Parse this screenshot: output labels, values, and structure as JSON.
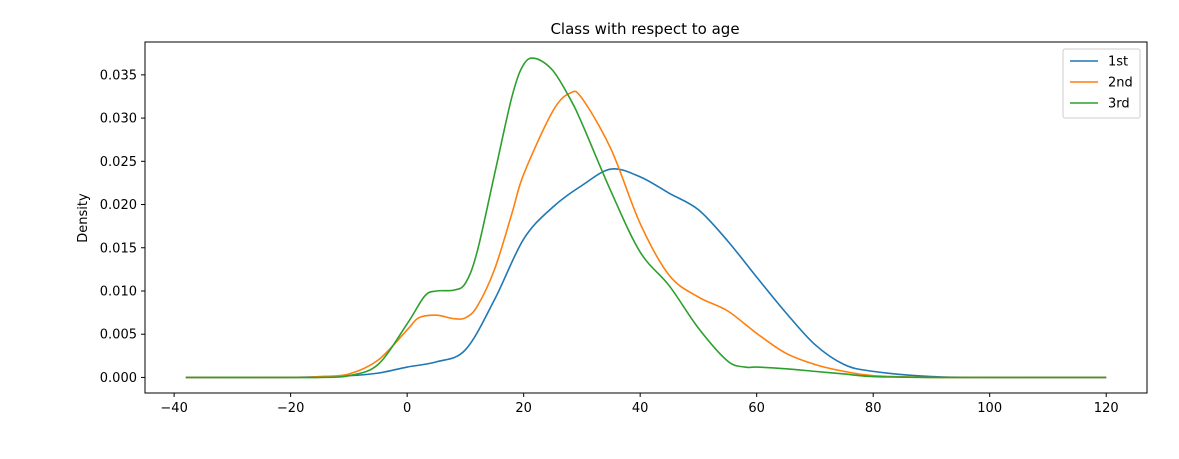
{
  "chart_data": {
    "type": "line",
    "title": "Class with respect to age",
    "xlabel": "",
    "ylabel": "Density",
    "xlim": [
      -45,
      127
    ],
    "ylim": [
      -0.0018,
      0.0388
    ],
    "xticks": [
      -40,
      -20,
      0,
      20,
      40,
      60,
      80,
      100,
      120
    ],
    "xtick_labels": [
      "−40",
      "−20",
      "0",
      "20",
      "40",
      "60",
      "80",
      "100",
      "120"
    ],
    "yticks": [
      0.0,
      0.005,
      0.01,
      0.015,
      0.02,
      0.025,
      0.03,
      0.035
    ],
    "ytick_labels": [
      "0.000",
      "0.005",
      "0.010",
      "0.015",
      "0.020",
      "0.025",
      "0.030",
      "0.035"
    ],
    "grid": false,
    "legend_position": "top-right",
    "series": [
      {
        "name": "1st",
        "color": "#1f77b4",
        "x": [
          -38,
          -20,
          -10,
          -5,
          0,
          5,
          10,
          15,
          20,
          25,
          30,
          35,
          40,
          45,
          50,
          55,
          60,
          65,
          70,
          75,
          80,
          90,
          100,
          110,
          120
        ],
        "y": [
          0.0,
          0.0,
          0.0002,
          0.0005,
          0.0012,
          0.0018,
          0.0032,
          0.009,
          0.016,
          0.0197,
          0.0222,
          0.0241,
          0.0232,
          0.0213,
          0.0194,
          0.0158,
          0.0116,
          0.0075,
          0.0038,
          0.0015,
          0.0007,
          0.0001,
          0.0,
          0.0,
          0.0
        ]
      },
      {
        "name": "2nd",
        "color": "#ff7f0e",
        "x": [
          -38,
          -20,
          -15,
          -10,
          -5,
          0,
          2,
          5,
          8,
          10,
          12,
          15,
          18,
          20,
          25,
          28,
          30,
          35,
          40,
          45,
          50,
          55,
          60,
          65,
          70,
          75,
          80,
          90,
          100,
          110,
          120
        ],
        "y": [
          0.0,
          0.0,
          0.0001,
          0.0004,
          0.002,
          0.0055,
          0.0069,
          0.0072,
          0.0068,
          0.0069,
          0.0082,
          0.0125,
          0.019,
          0.0235,
          0.0308,
          0.0329,
          0.0323,
          0.0264,
          0.0178,
          0.0118,
          0.0093,
          0.0077,
          0.0051,
          0.0028,
          0.0015,
          0.0007,
          0.0002,
          0.0,
          0.0,
          0.0,
          0.0
        ]
      },
      {
        "name": "3rd",
        "color": "#2ca02c",
        "x": [
          -38,
          -20,
          -15,
          -10,
          -5,
          0,
          3,
          5,
          8,
          10,
          12,
          15,
          18,
          20,
          22,
          25,
          28,
          30,
          35,
          40,
          45,
          50,
          55,
          58,
          60,
          65,
          70,
          75,
          80,
          90,
          100,
          110,
          120
        ],
        "y": [
          0.0,
          0.0,
          0.0,
          0.0002,
          0.0015,
          0.0062,
          0.0094,
          0.01,
          0.0101,
          0.0109,
          0.0145,
          0.0235,
          0.0325,
          0.0362,
          0.0369,
          0.0355,
          0.0322,
          0.0294,
          0.0215,
          0.0145,
          0.0106,
          0.0057,
          0.0019,
          0.0012,
          0.0012,
          0.001,
          0.0007,
          0.0004,
          0.0001,
          0.0,
          0.0,
          0.0,
          0.0
        ]
      }
    ]
  }
}
